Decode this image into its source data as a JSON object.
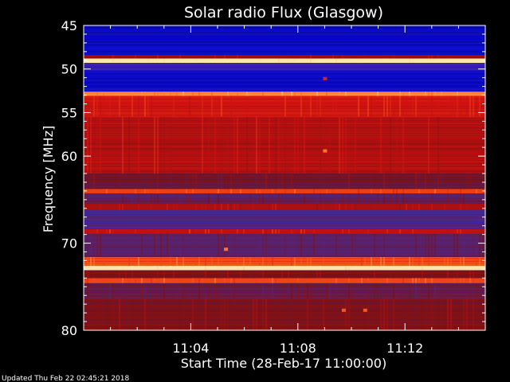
{
  "chart_data": {
    "type": "heatmap",
    "title": "Solar radio Flux (Glasgow)",
    "xlabel": "Start Time (28-Feb-17 11:00:00)",
    "ylabel": "Frequency [MHz]",
    "xlim_minutes": [
      0,
      15
    ],
    "ylim": [
      45,
      80
    ],
    "y_inverted": true,
    "x_ticks": [
      {
        "minute": 4,
        "label": "11:04"
      },
      {
        "minute": 8,
        "label": "11:08"
      },
      {
        "minute": 12,
        "label": "11:12"
      }
    ],
    "y_ticks": [
      45,
      50,
      55,
      60,
      70,
      80
    ],
    "y_minor_step": 1,
    "x_minor_step": 1,
    "colormap": [
      "#00005a",
      "#0b0bd4",
      "#4a2a95",
      "#7a1010",
      "#d41010",
      "#ff6a1a",
      "#ffe8b0"
    ],
    "frequency_bands": [
      {
        "from": 45.0,
        "to": 48.4,
        "level": 0.14
      },
      {
        "from": 48.4,
        "to": 48.8,
        "level": 0.55
      },
      {
        "from": 48.8,
        "to": 49.3,
        "level": 1.0
      },
      {
        "from": 49.3,
        "to": 50.2,
        "level": 0.28
      },
      {
        "from": 50.2,
        "to": 52.6,
        "level": 0.16
      },
      {
        "from": 52.6,
        "to": 53.1,
        "level": 0.85
      },
      {
        "from": 53.1,
        "to": 55.5,
        "level": 0.66
      },
      {
        "from": 55.5,
        "to": 62.0,
        "level": 0.6
      },
      {
        "from": 62.0,
        "to": 63.8,
        "level": 0.46
      },
      {
        "from": 63.8,
        "to": 64.3,
        "level": 0.74
      },
      {
        "from": 64.3,
        "to": 65.5,
        "level": 0.42
      },
      {
        "from": 65.5,
        "to": 66.2,
        "level": 0.58
      },
      {
        "from": 66.2,
        "to": 68.4,
        "level": 0.34
      },
      {
        "from": 68.4,
        "to": 68.9,
        "level": 0.66
      },
      {
        "from": 68.9,
        "to": 71.6,
        "level": 0.4
      },
      {
        "from": 71.6,
        "to": 72.6,
        "level": 0.78
      },
      {
        "from": 72.6,
        "to": 73.1,
        "level": 1.0
      },
      {
        "from": 73.1,
        "to": 74.0,
        "level": 0.5
      },
      {
        "from": 74.0,
        "to": 74.6,
        "level": 0.75
      },
      {
        "from": 74.6,
        "to": 76.4,
        "level": 0.42
      },
      {
        "from": 76.4,
        "to": 80.0,
        "level": 0.5
      }
    ],
    "bright_spots": [
      {
        "minute": 9.0,
        "freq": 51.1,
        "level": 0.7
      },
      {
        "minute": 9.0,
        "freq": 59.4,
        "level": 0.85
      },
      {
        "minute": 5.3,
        "freq": 70.7,
        "level": 0.85
      },
      {
        "minute": 9.7,
        "freq": 77.7,
        "level": 0.8
      },
      {
        "minute": 10.5,
        "freq": 77.7,
        "level": 0.8
      }
    ]
  },
  "footer": {
    "updated": "Updated Thu Feb 22 02:45:21 2018"
  }
}
